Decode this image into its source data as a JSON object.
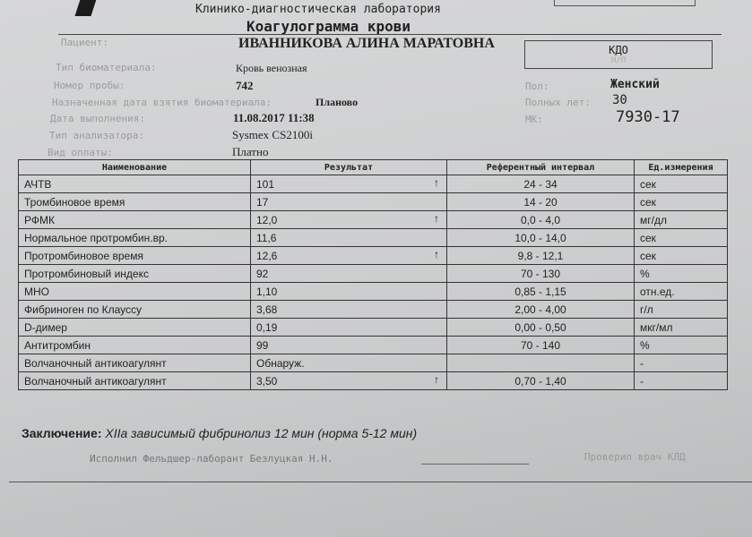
{
  "header": {
    "lab": "Клинико-диагностическая лаборатория",
    "title": "Коагулограмма крови"
  },
  "patient": {
    "label": "Пациент:",
    "name": "ИВАННИКОВА АЛИНА МАРАТОВНА"
  },
  "kdo": {
    "title": "КДО",
    "sub": "Н/П"
  },
  "fields": {
    "biomaterial_label": "Тип биоматериала:",
    "biomaterial": "Кровь венозная",
    "sample_label": "Номер пробы:",
    "sample": "742",
    "date_label": "Назначенная дата взятия биоматериала:",
    "date": "Планово",
    "done_label": "Дата выполнения:",
    "done": "11.08.2017  11:38",
    "analyzer_label": "Тип анализатора:",
    "analyzer": "Sysmex CS2100i",
    "payment_label": "Вид оплаты:",
    "payment": "Платно",
    "sex_label": "Пол:",
    "sex": "Женский",
    "age_label": "Полных лет:",
    "age": "30",
    "mk_label": "МК:",
    "mk": "7930-17"
  },
  "table": {
    "headers": [
      "Наименование",
      "Результат",
      "Референтный интервал",
      "Ед.измерения"
    ],
    "rows": [
      {
        "name": "АЧТВ",
        "result": "101",
        "flag": "↑",
        "ref": "24 - 34",
        "unit": "сек"
      },
      {
        "name": "Тромбиновое время",
        "result": "17",
        "flag": "",
        "ref": "14 - 20",
        "unit": "сек"
      },
      {
        "name": "РФМК",
        "result": "12,0",
        "flag": "↑",
        "ref": "0,0 - 4,0",
        "unit": "мг/дл"
      },
      {
        "name": "Нормальное протромбин.вр.",
        "result": "11,6",
        "flag": "",
        "ref": "10,0 - 14,0",
        "unit": "сек"
      },
      {
        "name": "Протромбиновое время",
        "result": "12,6",
        "flag": "↑",
        "ref": "9,8 - 12,1",
        "unit": "сек"
      },
      {
        "name": "Протромбиновый индекс",
        "result": "92",
        "flag": "",
        "ref": "70 - 130",
        "unit": "%"
      },
      {
        "name": "МНО",
        "result": "1,10",
        "flag": "",
        "ref": "0,85 - 1,15",
        "unit": "отн.ед."
      },
      {
        "name": "Фибриноген по Клауссу",
        "result": "3,68",
        "flag": "",
        "ref": "2,00 - 4,00",
        "unit": "г/л"
      },
      {
        "name": "D-димер",
        "result": "0,19",
        "flag": "",
        "ref": "0,00 - 0,50",
        "unit": "мкг/мл"
      },
      {
        "name": "Антитромбин",
        "result": "99",
        "flag": "",
        "ref": "70 - 140",
        "unit": "%"
      },
      {
        "name": "Волчаночный антикоагулянт",
        "result": "Обнаруж.",
        "flag": "",
        "ref": "",
        "unit": "-"
      },
      {
        "name": "Волчаночный антикоагулянт",
        "result": "3,50",
        "flag": "↑",
        "ref": "0,70 - 1,40",
        "unit": "-"
      }
    ]
  },
  "conclusion": {
    "label": "Заключение:",
    "text": "XIIa зависимый фибринолиз 12 мин (норма 5-12 мин)"
  },
  "footer": {
    "performed": "Исполнил Фельдшер-лаборант  Безлуцкая Н.Н.",
    "checked": "Проверил врач КЛД"
  }
}
